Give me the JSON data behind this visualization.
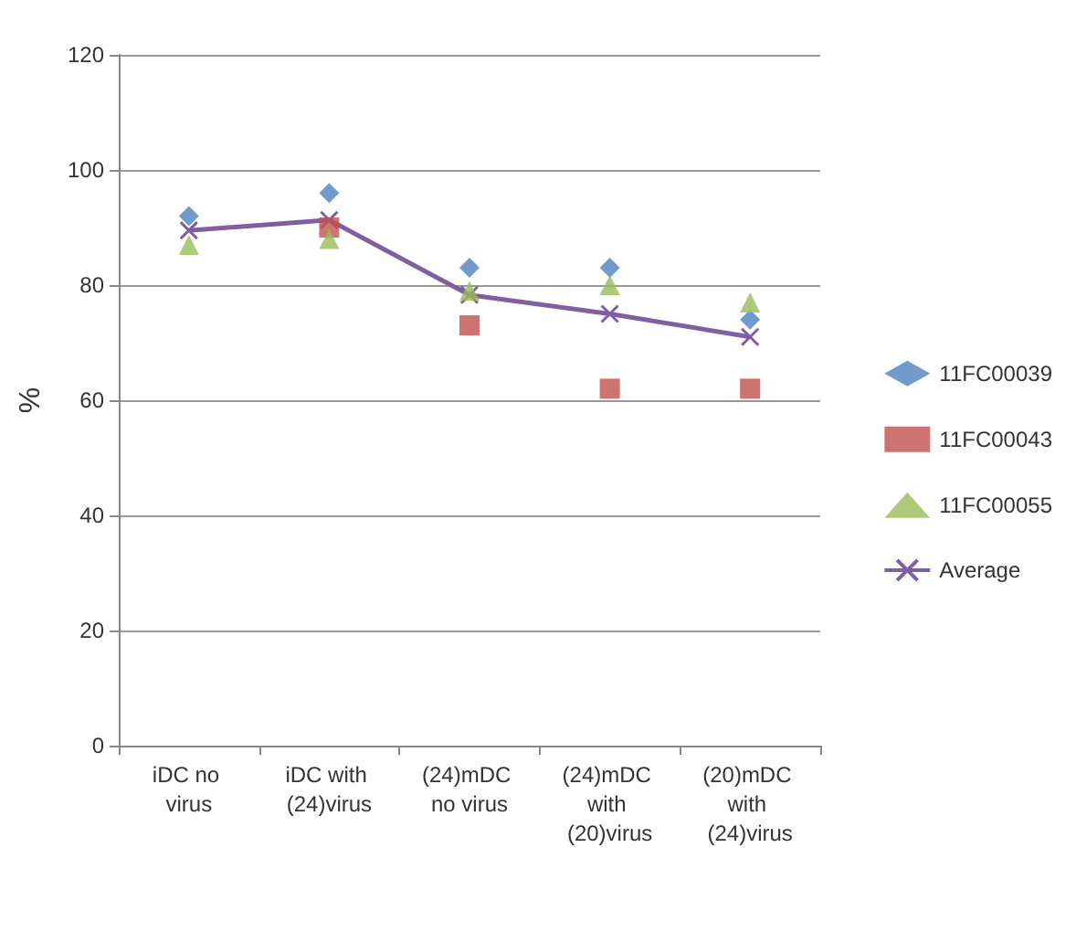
{
  "chart_data": {
    "type": "scatter",
    "ylabel": "%",
    "categories": [
      "iDC no virus",
      "iDC with (24)virus",
      "(24)mDC no virus",
      "(24)mDC with (20)virus",
      "(20)mDC with (24)virus"
    ],
    "series": [
      {
        "name": "11FC00039",
        "color": "#4f81bd",
        "marker": "diamond",
        "values": [
          92,
          96,
          83,
          83,
          74
        ]
      },
      {
        "name": "11FC00043",
        "color": "#c0504d",
        "marker": "square",
        "values": [
          null,
          90,
          73,
          62,
          62
        ]
      },
      {
        "name": "11FC00055",
        "color": "#9bbb59",
        "marker": "triangle",
        "values": [
          87,
          88,
          79,
          80,
          77
        ]
      },
      {
        "name": "Average",
        "type": "line",
        "color": "#7f5f9f",
        "marker": "cross",
        "line_style": "solid",
        "values": [
          89.5,
          91.3,
          78.3,
          75,
          71
        ]
      }
    ],
    "ylim": [
      0,
      120
    ],
    "yticks": [
      0,
      20,
      40,
      60,
      80,
      100,
      120
    ],
    "grid": "y",
    "legend": "right"
  }
}
